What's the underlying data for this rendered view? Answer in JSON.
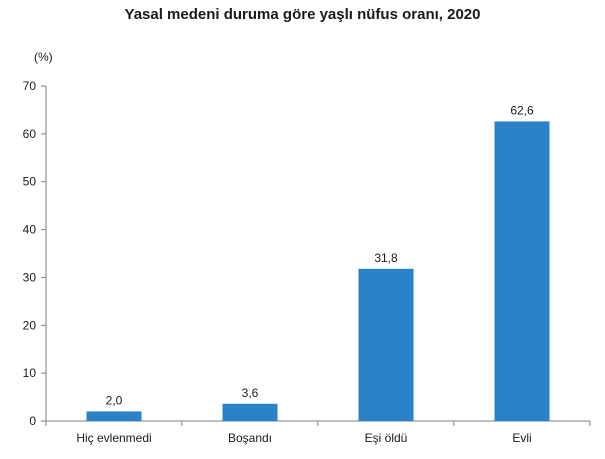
{
  "chart_data": {
    "type": "bar",
    "title": "Yasal medeni duruma göre yaşlı nüfus oranı, 2020",
    "unit_label": "(%)",
    "categories": [
      "Hiç evlenmedi",
      "Boşandı",
      "Eşi öldü",
      "Evli"
    ],
    "values": [
      2.0,
      3.6,
      31.8,
      62.6
    ],
    "value_labels": [
      "2,0",
      "3,6",
      "31,8",
      "62,6"
    ],
    "ylim": [
      0,
      70
    ],
    "yticks": [
      0,
      10,
      20,
      30,
      40,
      50,
      60,
      70
    ],
    "grid": false,
    "legend": "none",
    "bar_color": "#2a82c8"
  }
}
